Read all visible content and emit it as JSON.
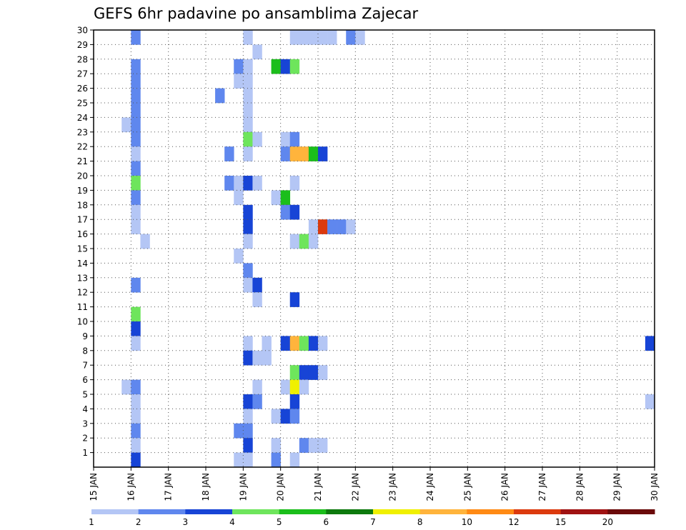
{
  "chart_data": {
    "type": "heatmap",
    "title": "GEFS 6hr padavine po ansamblima Zajecar",
    "xlabel": "",
    "ylabel": "",
    "x_ticks": [
      "15 JAN",
      "16 JAN",
      "17 JAN",
      "18 JAN",
      "19 JAN",
      "20 JAN",
      "21 JAN",
      "22 JAN",
      "23 JAN",
      "24 JAN",
      "25 JAN",
      "26 JAN",
      "27 JAN",
      "28 JAN",
      "29 JAN",
      "30 JAN"
    ],
    "y_ticks": [
      "1",
      "2",
      "3",
      "4",
      "5",
      "6",
      "7",
      "8",
      "9",
      "10",
      "11",
      "12",
      "13",
      "14",
      "15",
      "16",
      "17",
      "18",
      "19",
      "20",
      "21",
      "22",
      "23",
      "24",
      "25",
      "26",
      "27",
      "28",
      "29",
      "30"
    ],
    "xlim": [
      "15 JAN 00h",
      "30 JAN 00h"
    ],
    "ylim": [
      0,
      30
    ],
    "x_step_hours": 6,
    "grid": true,
    "colorbar": {
      "thresholds": [
        1,
        2,
        3,
        4,
        5,
        6,
        7,
        8,
        10,
        12,
        15,
        20
      ],
      "labels": [
        "1",
        "2",
        "3",
        "4",
        "5",
        "6",
        "7",
        "8",
        "10",
        "12",
        "15",
        "20"
      ],
      "colors": [
        "#b4c6f5",
        "#5f87ee",
        "#1744d6",
        "#6ee55c",
        "#1bbe1b",
        "#0d7a0d",
        "#f0f000",
        "#ffb43c",
        "#ff8a14",
        "#dc3a0e",
        "#a01212",
        "#6b0a0a"
      ]
    },
    "cells": [
      {
        "m": 30,
        "t": "16 JAN 00h",
        "c": 1
      },
      {
        "m": 30,
        "t": "19 JAN 00h",
        "c": 0
      },
      {
        "m": 30,
        "t": "20 JAN 06h",
        "c": 0
      },
      {
        "m": 30,
        "t": "20 JAN 12h",
        "c": 0
      },
      {
        "m": 30,
        "t": "20 JAN 18h",
        "c": 0
      },
      {
        "m": 30,
        "t": "21 JAN 00h",
        "c": 0
      },
      {
        "m": 30,
        "t": "21 JAN 06h",
        "c": 0
      },
      {
        "m": 30,
        "t": "21 JAN 18h",
        "c": 1
      },
      {
        "m": 30,
        "t": "22 JAN 00h",
        "c": 0
      },
      {
        "m": 29,
        "t": "19 JAN 06h",
        "c": 0
      },
      {
        "m": 28,
        "t": "16 JAN 00h",
        "c": 1
      },
      {
        "m": 28,
        "t": "18 JAN 18h",
        "c": 1
      },
      {
        "m": 28,
        "t": "19 JAN 00h",
        "c": 0
      },
      {
        "m": 28,
        "t": "19 JAN 18h",
        "c": 4
      },
      {
        "m": 28,
        "t": "20 JAN 00h",
        "c": 2
      },
      {
        "m": 28,
        "t": "20 JAN 06h",
        "c": 3
      },
      {
        "m": 27,
        "t": "16 JAN 00h",
        "c": 1
      },
      {
        "m": 27,
        "t": "18 JAN 18h",
        "c": 0
      },
      {
        "m": 27,
        "t": "19 JAN 00h",
        "c": 0
      },
      {
        "m": 26,
        "t": "16 JAN 00h",
        "c": 1
      },
      {
        "m": 26,
        "t": "18 JAN 06h",
        "c": 1
      },
      {
        "m": 26,
        "t": "19 JAN 00h",
        "c": 0
      },
      {
        "m": 25,
        "t": "16 JAN 00h",
        "c": 1
      },
      {
        "m": 25,
        "t": "19 JAN 00h",
        "c": 0
      },
      {
        "m": 24,
        "t": "15 JAN 18h",
        "c": 0
      },
      {
        "m": 24,
        "t": "16 JAN 00h",
        "c": 1
      },
      {
        "m": 24,
        "t": "19 JAN 00h",
        "c": 0
      },
      {
        "m": 23,
        "t": "16 JAN 00h",
        "c": 1
      },
      {
        "m": 23,
        "t": "19 JAN 00h",
        "c": 3
      },
      {
        "m": 23,
        "t": "19 JAN 06h",
        "c": 0
      },
      {
        "m": 23,
        "t": "20 JAN 00h",
        "c": 0
      },
      {
        "m": 23,
        "t": "20 JAN 06h",
        "c": 1
      },
      {
        "m": 22,
        "t": "16 JAN 00h",
        "c": 0
      },
      {
        "m": 22,
        "t": "18 JAN 12h",
        "c": 1
      },
      {
        "m": 22,
        "t": "19 JAN 00h",
        "c": 0
      },
      {
        "m": 22,
        "t": "20 JAN 00h",
        "c": 1
      },
      {
        "m": 22,
        "t": "20 JAN 06h",
        "c": 7
      },
      {
        "m": 22,
        "t": "20 JAN 12h",
        "c": 7
      },
      {
        "m": 22,
        "t": "20 JAN 18h",
        "c": 4
      },
      {
        "m": 22,
        "t": "21 JAN 00h",
        "c": 2
      },
      {
        "m": 21,
        "t": "16 JAN 00h",
        "c": 1
      },
      {
        "m": 20,
        "t": "16 JAN 00h",
        "c": 3
      },
      {
        "m": 20,
        "t": "18 JAN 12h",
        "c": 1
      },
      {
        "m": 20,
        "t": "18 JAN 18h",
        "c": 0
      },
      {
        "m": 20,
        "t": "19 JAN 00h",
        "c": 2
      },
      {
        "m": 20,
        "t": "19 JAN 06h",
        "c": 0
      },
      {
        "m": 20,
        "t": "20 JAN 06h",
        "c": 0
      },
      {
        "m": 19,
        "t": "16 JAN 00h",
        "c": 1
      },
      {
        "m": 19,
        "t": "18 JAN 18h",
        "c": 0
      },
      {
        "m": 19,
        "t": "19 JAN 18h",
        "c": 0
      },
      {
        "m": 19,
        "t": "20 JAN 00h",
        "c": 4
      },
      {
        "m": 18,
        "t": "16 JAN 00h",
        "c": 0
      },
      {
        "m": 18,
        "t": "19 JAN 00h",
        "c": 2
      },
      {
        "m": 18,
        "t": "20 JAN 00h",
        "c": 1
      },
      {
        "m": 18,
        "t": "20 JAN 06h",
        "c": 2
      },
      {
        "m": 17,
        "t": "16 JAN 00h",
        "c": 0
      },
      {
        "m": 17,
        "t": "19 JAN 00h",
        "c": 2
      },
      {
        "m": 17,
        "t": "20 JAN 18h",
        "c": 0
      },
      {
        "m": 17,
        "t": "21 JAN 00h",
        "c": 9
      },
      {
        "m": 17,
        "t": "21 JAN 06h",
        "c": 1
      },
      {
        "m": 17,
        "t": "21 JAN 12h",
        "c": 1
      },
      {
        "m": 17,
        "t": "21 JAN 18h",
        "c": 0
      },
      {
        "m": 16,
        "t": "16 JAN 06h",
        "c": 0
      },
      {
        "m": 16,
        "t": "19 JAN 00h",
        "c": 0
      },
      {
        "m": 16,
        "t": "20 JAN 06h",
        "c": 0
      },
      {
        "m": 16,
        "t": "20 JAN 12h",
        "c": 3
      },
      {
        "m": 16,
        "t": "20 JAN 18h",
        "c": 0
      },
      {
        "m": 15,
        "t": "18 JAN 18h",
        "c": 0
      },
      {
        "m": 14,
        "t": "19 JAN 00h",
        "c": 1
      },
      {
        "m": 13,
        "t": "16 JAN 00h",
        "c": 1
      },
      {
        "m": 13,
        "t": "19 JAN 00h",
        "c": 0
      },
      {
        "m": 13,
        "t": "19 JAN 06h",
        "c": 2
      },
      {
        "m": 12,
        "t": "19 JAN 06h",
        "c": 0
      },
      {
        "m": 12,
        "t": "20 JAN 06h",
        "c": 2
      },
      {
        "m": 11,
        "t": "16 JAN 00h",
        "c": 3
      },
      {
        "m": 10,
        "t": "16 JAN 00h",
        "c": 2
      },
      {
        "m": 9,
        "t": "16 JAN 00h",
        "c": 0
      },
      {
        "m": 9,
        "t": "19 JAN 00h",
        "c": 0
      },
      {
        "m": 9,
        "t": "19 JAN 12h",
        "c": 0
      },
      {
        "m": 9,
        "t": "20 JAN 00h",
        "c": 2
      },
      {
        "m": 9,
        "t": "20 JAN 06h",
        "c": 7
      },
      {
        "m": 9,
        "t": "20 JAN 12h",
        "c": 3
      },
      {
        "m": 9,
        "t": "20 JAN 18h",
        "c": 2
      },
      {
        "m": 9,
        "t": "21 JAN 00h",
        "c": 0
      },
      {
        "m": 9,
        "t": "29 JAN 18h",
        "c": 2
      },
      {
        "m": 8,
        "t": "19 JAN 00h",
        "c": 2
      },
      {
        "m": 8,
        "t": "19 JAN 06h",
        "c": 0
      },
      {
        "m": 8,
        "t": "19 JAN 12h",
        "c": 0
      },
      {
        "m": 7,
        "t": "20 JAN 06h",
        "c": 3
      },
      {
        "m": 7,
        "t": "20 JAN 12h",
        "c": 2
      },
      {
        "m": 7,
        "t": "20 JAN 18h",
        "c": 2
      },
      {
        "m": 7,
        "t": "21 JAN 00h",
        "c": 0
      },
      {
        "m": 6,
        "t": "15 JAN 18h",
        "c": 0
      },
      {
        "m": 6,
        "t": "16 JAN 00h",
        "c": 1
      },
      {
        "m": 6,
        "t": "19 JAN 06h",
        "c": 0
      },
      {
        "m": 6,
        "t": "20 JAN 00h",
        "c": 0
      },
      {
        "m": 6,
        "t": "20 JAN 06h",
        "c": 6
      },
      {
        "m": 6,
        "t": "20 JAN 12h",
        "c": 0
      },
      {
        "m": 5,
        "t": "16 JAN 00h",
        "c": 0
      },
      {
        "m": 5,
        "t": "19 JAN 00h",
        "c": 2
      },
      {
        "m": 5,
        "t": "19 JAN 06h",
        "c": 1
      },
      {
        "m": 5,
        "t": "20 JAN 06h",
        "c": 2
      },
      {
        "m": 5,
        "t": "29 JAN 18h",
        "c": 0
      },
      {
        "m": 4,
        "t": "16 JAN 00h",
        "c": 0
      },
      {
        "m": 4,
        "t": "19 JAN 00h",
        "c": 0
      },
      {
        "m": 4,
        "t": "19 JAN 18h",
        "c": 0
      },
      {
        "m": 4,
        "t": "20 JAN 00h",
        "c": 2
      },
      {
        "m": 4,
        "t": "20 JAN 06h",
        "c": 1
      },
      {
        "m": 3,
        "t": "16 JAN 00h",
        "c": 1
      },
      {
        "m": 3,
        "t": "18 JAN 18h",
        "c": 1
      },
      {
        "m": 3,
        "t": "19 JAN 00h",
        "c": 1
      },
      {
        "m": 2,
        "t": "16 JAN 00h",
        "c": 0
      },
      {
        "m": 2,
        "t": "19 JAN 00h",
        "c": 2
      },
      {
        "m": 2,
        "t": "19 JAN 18h",
        "c": 0
      },
      {
        "m": 2,
        "t": "20 JAN 12h",
        "c": 1
      },
      {
        "m": 2,
        "t": "20 JAN 18h",
        "c": 0
      },
      {
        "m": 2,
        "t": "21 JAN 00h",
        "c": 0
      },
      {
        "m": 1,
        "t": "16 JAN 00h",
        "c": 2
      },
      {
        "m": 1,
        "t": "18 JAN 18h",
        "c": 0
      },
      {
        "m": 1,
        "t": "19 JAN 00h",
        "c": 0
      },
      {
        "m": 1,
        "t": "19 JAN 18h",
        "c": 1
      },
      {
        "m": 1,
        "t": "20 JAN 06h",
        "c": 0
      }
    ]
  }
}
